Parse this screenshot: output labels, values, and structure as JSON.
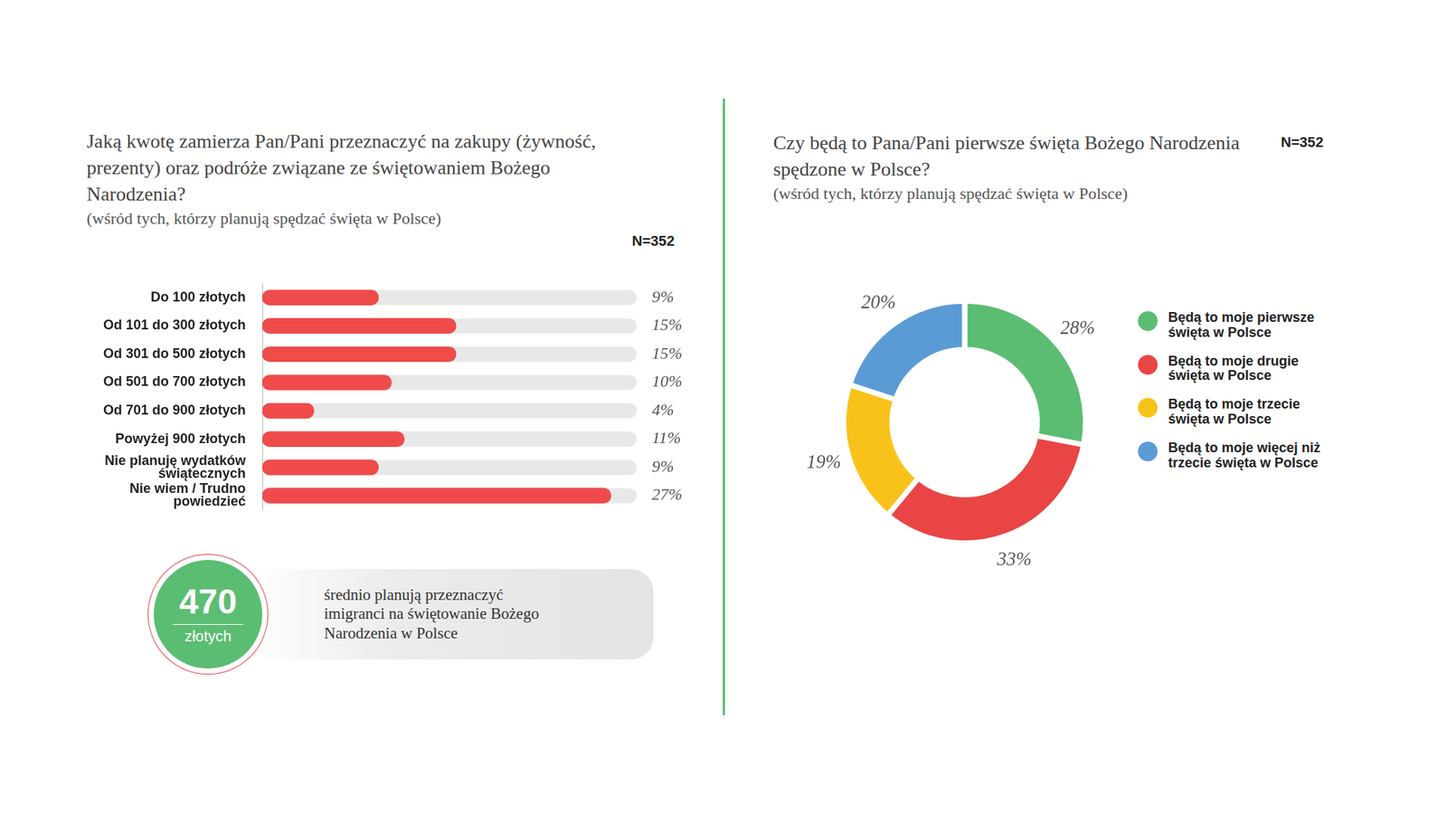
{
  "chart_data": [
    {
      "type": "bar",
      "orientation": "horizontal",
      "title": "Jaką kwotę zamierza Pan/Pani przeznaczyć na zakupy (żywność, prezenty) oraz podróże związane ze świętowaniem Bożego Narodzenia?",
      "subtitle": "(wśród tych, którzy planują spędzać święta w Polsce)",
      "annotation": "N=352",
      "categories": [
        "Do 100 złotych",
        "Od 101 do 300 złotych",
        "Od 301 do 500 złotych",
        "Od 501 do 700 złotych",
        "Od 701 do 900 złotych",
        "Powyżej 900 złotych",
        "Nie planuję wydatków świątecznych",
        "Nie wiem / Trudno powiedzieć"
      ],
      "values": [
        9,
        15,
        15,
        10,
        4,
        11,
        9,
        27
      ],
      "value_labels": [
        "9%",
        "15%",
        "15%",
        "10%",
        "4%",
        "11%",
        "9%",
        "27%"
      ],
      "color": "#ef4b4b",
      "xlim": [
        0,
        29
      ],
      "tick_labels": "y",
      "grid": false,
      "data_labels": true
    },
    {
      "type": "doughnut",
      "title": "Czy będą to Pana/Pani pierwsze święta Bożego Narodzenia spędzone w Polsce?",
      "subtitle": "(wśród tych, którzy planują spędzać święta w Polsce)",
      "annotation": "N=352",
      "categories": [
        "Będą to moje pierwsze święta w Polsce",
        "Będą to moje drugie święta w Polsce",
        "Będą to moje trzecie święta w Polsce",
        "Będą to moje więcej niż trzecie święta w Polsce"
      ],
      "values": [
        28,
        33,
        19,
        20
      ],
      "value_labels": [
        "28%",
        "33%",
        "19%",
        "20%"
      ],
      "colors": [
        "#5bbd72",
        "#e94545",
        "#f9c21b",
        "#5a9bd5"
      ],
      "data_labels": true,
      "legend": "right"
    }
  ],
  "callout": {
    "value": 470,
    "unit": "złotych",
    "text": "średnio planują przeznaczyć imigranci na świętowanie Bożego Narodzenia w Polsce"
  }
}
